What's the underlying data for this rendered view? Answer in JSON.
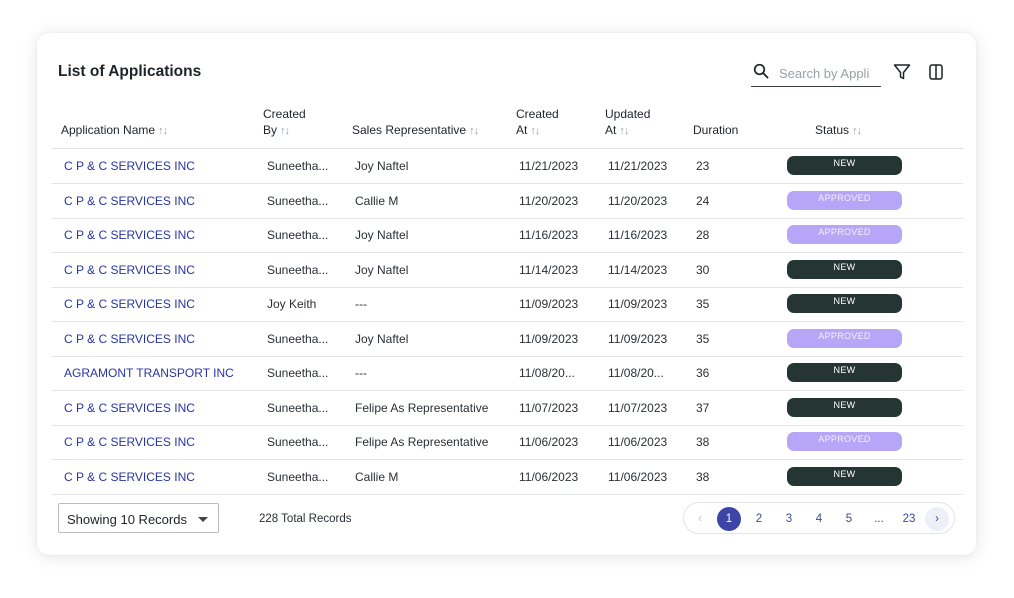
{
  "header": {
    "title": "List of Applications",
    "search_placeholder": "Search by Appli",
    "icons": {
      "search": "search-icon",
      "filter": "filter-icon",
      "columns": "columns-icon"
    }
  },
  "columns": {
    "application_name": "Application Name",
    "created_by": [
      "Created",
      "By"
    ],
    "sales_rep": "Sales Representative",
    "created_at": [
      "Created",
      "At"
    ],
    "updated_at": [
      "Updated",
      "At"
    ],
    "duration": "Duration",
    "status": "Status",
    "sort_glyph": "↑↓"
  },
  "rows": [
    {
      "name": "C P & C SERVICES INC",
      "created_by": "Suneetha...",
      "rep": "Joy Naftel",
      "created_at": "11/21/2023",
      "updated_at": "11/21/2023",
      "duration": "23",
      "status": "NEW"
    },
    {
      "name": "C P & C SERVICES INC",
      "created_by": "Suneetha...",
      "rep": "Callie M",
      "created_at": "11/20/2023",
      "updated_at": "11/20/2023",
      "duration": "24",
      "status": "APPROVED"
    },
    {
      "name": "C P & C SERVICES INC",
      "created_by": "Suneetha...",
      "rep": "Joy Naftel",
      "created_at": "11/16/2023",
      "updated_at": "11/16/2023",
      "duration": "28",
      "status": "APPROVED"
    },
    {
      "name": "C P & C SERVICES INC",
      "created_by": "Suneetha...",
      "rep": "Joy Naftel",
      "created_at": "11/14/2023",
      "updated_at": "11/14/2023",
      "duration": "30",
      "status": "NEW"
    },
    {
      "name": "C P & C SERVICES INC",
      "created_by": "Joy Keith",
      "rep": "---",
      "created_at": "11/09/2023",
      "updated_at": "11/09/2023",
      "duration": "35",
      "status": "NEW"
    },
    {
      "name": "C P & C SERVICES INC",
      "created_by": "Suneetha...",
      "rep": "Joy Naftel",
      "created_at": "11/09/2023",
      "updated_at": "11/09/2023",
      "duration": "35",
      "status": "APPROVED"
    },
    {
      "name": "AGRAMONT TRANSPORT INC",
      "created_by": "Suneetha...",
      "rep": "---",
      "created_at": "11/08/20...",
      "updated_at": "11/08/20...",
      "duration": "36",
      "status": "NEW"
    },
    {
      "name": "C P & C SERVICES INC",
      "created_by": "Suneetha...",
      "rep": "Felipe As Representative",
      "created_at": "11/07/2023",
      "updated_at": "11/07/2023",
      "duration": "37",
      "status": "NEW"
    },
    {
      "name": "C P & C SERVICES INC",
      "created_by": "Suneetha...",
      "rep": "Felipe As Representative",
      "created_at": "11/06/2023",
      "updated_at": "11/06/2023",
      "duration": "38",
      "status": "APPROVED"
    },
    {
      "name": "C P & C SERVICES INC",
      "created_by": "Suneetha...",
      "rep": "Callie M",
      "created_at": "11/06/2023",
      "updated_at": "11/06/2023",
      "duration": "38",
      "status": "NEW"
    }
  ],
  "footer": {
    "records_select": "Showing 10 Records",
    "total": "228 Total Records"
  },
  "pagination": {
    "prev": "‹",
    "next": "›",
    "pages": [
      "1",
      "2",
      "3",
      "4",
      "5",
      "...",
      "23"
    ],
    "current": "1"
  },
  "colors": {
    "link": "#2735a3",
    "status_new": "#253533",
    "status_approved": "#b7a6f7",
    "pager_active": "#3c44a8"
  }
}
